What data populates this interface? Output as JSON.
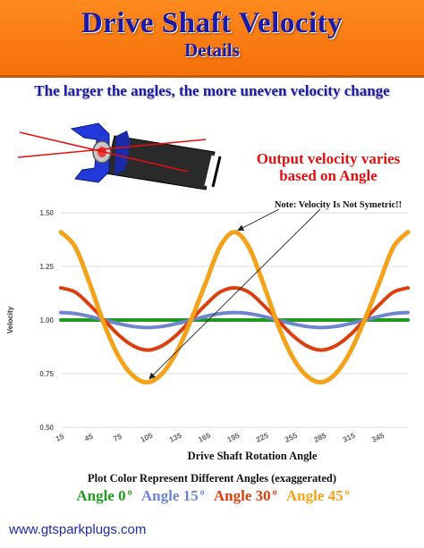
{
  "header": {
    "title": "Drive Shaft Velocity",
    "subtitle": "Details"
  },
  "tagline": "The larger the angles, the more uneven velocity change",
  "output_note": {
    "line1": "Output velocity  varies",
    "line2": "based on Angle"
  },
  "colors": {
    "angle0": "#1f9a1f",
    "angle15": "#6f86cf",
    "angle30": "#d9400f",
    "angle45": "#f4a21a",
    "header_bg": "#f47008",
    "title_blue": "#1a1aa6",
    "note_red": "#e01010"
  },
  "chart_data": {
    "type": "line",
    "ylabel": "Velocity",
    "xlabel": "Drive Shaft Rotation Angle",
    "ylim": [
      0.5,
      1.5
    ],
    "xlim": [
      15,
      375
    ],
    "y_ticks": [
      "0.50",
      "0.75",
      "1.00",
      "1.25",
      "1.50"
    ],
    "x_ticks": [
      "15",
      "45",
      "75",
      "105",
      "135",
      "165",
      "195",
      "225",
      "255",
      "285",
      "315",
      "345"
    ],
    "grid": true,
    "annotation": "Note: Velocity Is Not Symetric!!",
    "annotation_points": [
      [
        195,
        1.41
      ],
      [
        105,
        0.71
      ]
    ],
    "series": [
      {
        "name": "Angle 0",
        "color": "#1f9a1f",
        "x": [
          15,
          30,
          45,
          60,
          75,
          90,
          105,
          120,
          135,
          150,
          165,
          180,
          195,
          210,
          225,
          240,
          255,
          270,
          285,
          300,
          315,
          330,
          345,
          360,
          375
        ],
        "y": [
          1.0,
          1.0,
          1.0,
          1.0,
          1.0,
          1.0,
          1.0,
          1.0,
          1.0,
          1.0,
          1.0,
          1.0,
          1.0,
          1.0,
          1.0,
          1.0,
          1.0,
          1.0,
          1.0,
          1.0,
          1.0,
          1.0,
          1.0,
          1.0,
          1.0
        ]
      },
      {
        "name": "Angle 15",
        "color": "#6f86cf",
        "x": [
          15,
          30,
          45,
          60,
          75,
          90,
          105,
          120,
          135,
          150,
          165,
          180,
          195,
          210,
          225,
          240,
          255,
          270,
          285,
          300,
          315,
          330,
          345,
          360,
          375
        ],
        "y": [
          1.035,
          1.03,
          1.017,
          1.0,
          0.983,
          0.97,
          0.965,
          0.97,
          0.983,
          1.0,
          1.017,
          1.03,
          1.035,
          1.03,
          1.017,
          1.0,
          0.983,
          0.97,
          0.965,
          0.97,
          0.983,
          1.0,
          1.017,
          1.03,
          1.035
        ]
      },
      {
        "name": "Angle 30",
        "color": "#d9400f",
        "x": [
          15,
          30,
          45,
          60,
          75,
          90,
          105,
          120,
          135,
          150,
          165,
          180,
          195,
          210,
          225,
          240,
          255,
          270,
          285,
          300,
          315,
          330,
          345,
          360,
          375
        ],
        "y": [
          1.15,
          1.13,
          1.07,
          1.0,
          0.93,
          0.88,
          0.86,
          0.88,
          0.93,
          1.0,
          1.07,
          1.13,
          1.15,
          1.13,
          1.07,
          1.0,
          0.93,
          0.88,
          0.86,
          0.88,
          0.93,
          1.0,
          1.07,
          1.13,
          1.15
        ]
      },
      {
        "name": "Angle 45",
        "color": "#f4a21a",
        "x": [
          15,
          30,
          45,
          60,
          75,
          90,
          105,
          120,
          135,
          150,
          165,
          180,
          195,
          210,
          225,
          240,
          255,
          270,
          285,
          300,
          315,
          330,
          345,
          360,
          375
        ],
        "y": [
          1.41,
          1.34,
          1.17,
          0.98,
          0.83,
          0.74,
          0.71,
          0.75,
          0.85,
          1.0,
          1.17,
          1.34,
          1.41,
          1.34,
          1.17,
          0.98,
          0.83,
          0.74,
          0.71,
          0.75,
          0.85,
          1.0,
          1.17,
          1.34,
          1.41
        ]
      }
    ]
  },
  "caption": "Plot Color Represent Different Angles (exaggerated)",
  "legend": [
    {
      "label": "Angle 0",
      "degree": "o",
      "color": "#1f9a1f"
    },
    {
      "label": "Angle 15",
      "degree": "o",
      "color": "#6f86cf"
    },
    {
      "label": "Angle 30",
      "degree": "o",
      "color": "#d9400f"
    },
    {
      "label": "Angle 45",
      "degree": "o",
      "color": "#f4a21a"
    }
  ],
  "website": "www.gtsparkplugs.com",
  "icons": [
    "universal-joint-icon"
  ]
}
